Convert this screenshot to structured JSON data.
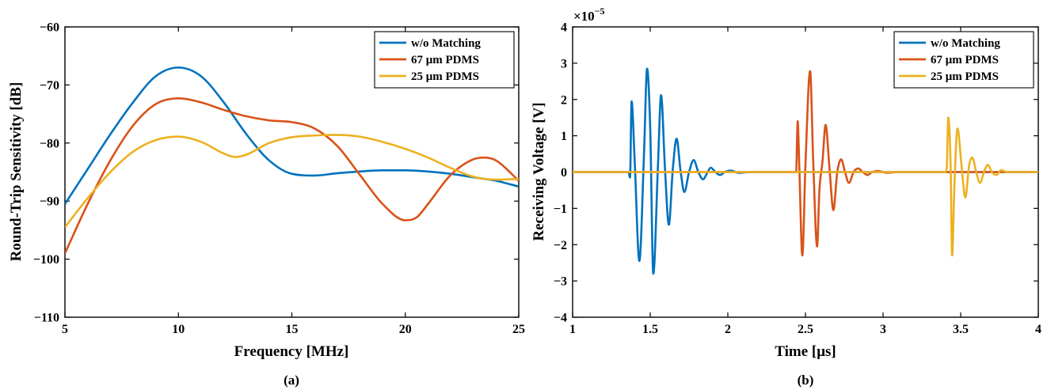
{
  "colors": {
    "w_o_matching": "#0072BD",
    "pdms_67": "#D95319",
    "pdms_25": "#EDB120"
  },
  "captions": [
    "(a)",
    "(b)"
  ],
  "chart_data": [
    {
      "type": "line",
      "panel": "(a)",
      "xlabel": "Frequency [MHz]",
      "ylabel": "Round-Trip Sensitivity [dB]",
      "xlim": [
        5,
        25
      ],
      "ylim": [
        -110,
        -60
      ],
      "xticks": [
        5,
        10,
        15,
        20,
        25
      ],
      "yticks": [
        -110,
        -100,
        -90,
        -80,
        -70,
        -60
      ],
      "grid": false,
      "legend_position": "top-right",
      "series": [
        {
          "name": "w/o Matching",
          "color": "#0072BD",
          "x": [
            5,
            6,
            7,
            8,
            9,
            10,
            11,
            12,
            13,
            14,
            15,
            16,
            17,
            18,
            19,
            20,
            21,
            22,
            23,
            24,
            25
          ],
          "y": [
            -90.5,
            -84.5,
            -78.5,
            -73,
            -68.5,
            -67,
            -68.5,
            -73,
            -78.5,
            -83,
            -85.3,
            -85.6,
            -85.2,
            -84.9,
            -84.7,
            -84.7,
            -84.9,
            -85.3,
            -85.9,
            -86.5,
            -87.5
          ]
        },
        {
          "name": "67 μm PDMS",
          "color": "#D95319",
          "x": [
            5,
            6,
            7,
            8,
            9,
            10,
            11,
            12,
            13,
            14,
            15,
            16,
            17,
            18,
            19,
            20,
            20.5,
            21,
            22,
            23,
            23.5,
            24,
            25
          ],
          "y": [
            -99,
            -90.5,
            -83,
            -77,
            -73.3,
            -72.3,
            -73,
            -74.3,
            -75.4,
            -76.1,
            -76.4,
            -77.5,
            -80.5,
            -85.5,
            -90.5,
            -93.3,
            -92.8,
            -90.5,
            -85.5,
            -82.8,
            -82.5,
            -83,
            -86.5
          ]
        },
        {
          "name": "25 μm PDMS",
          "color": "#EDB120",
          "x": [
            5,
            6,
            7,
            8,
            9,
            10,
            11,
            12,
            12.5,
            13,
            14,
            15,
            16,
            17,
            18,
            19,
            20,
            21,
            22,
            23,
            24,
            25
          ],
          "y": [
            -94.5,
            -89.5,
            -85,
            -81.5,
            -79.5,
            -78.9,
            -79.8,
            -81.8,
            -82.4,
            -82,
            -80,
            -79,
            -78.7,
            -78.6,
            -78.9,
            -79.8,
            -81,
            -82.5,
            -84.3,
            -85.8,
            -86.3,
            -86.2
          ]
        }
      ]
    },
    {
      "type": "line",
      "panel": "(b)",
      "xlabel": "Time [μs]",
      "ylabel": "Receiving Voltage [V]",
      "scale_label_base": "×10",
      "scale_label_exp": "−5",
      "xlim": [
        1,
        4
      ],
      "ylim": [
        -4,
        4
      ],
      "xticks": [
        1,
        1.5,
        2,
        2.5,
        3,
        3.5,
        4
      ],
      "yticks": [
        -4,
        -3,
        -2,
        -1,
        0,
        1,
        2,
        3,
        4
      ],
      "grid": false,
      "legend_position": "top-right",
      "series": [
        {
          "name": "w/o Matching",
          "color": "#0072BD",
          "x": [
            1,
            1.36,
            1.37,
            1.38,
            1.4,
            1.43,
            1.46,
            1.48,
            1.5,
            1.52,
            1.55,
            1.57,
            1.595,
            1.62,
            1.645,
            1.67,
            1.695,
            1.72,
            1.75,
            1.78,
            1.81,
            1.84,
            1.87,
            1.89,
            1.92,
            1.95,
            1.98,
            2.02,
            2.07,
            2.15,
            4
          ],
          "y": [
            0,
            0,
            -0.15,
            1.95,
            0.3,
            -2.45,
            0.5,
            2.85,
            1.2,
            -2.8,
            0.2,
            2.12,
            0.1,
            -1.45,
            0.05,
            0.92,
            0.05,
            -0.55,
            0,
            0.33,
            0,
            -0.2,
            0,
            0.12,
            0,
            -0.08,
            0,
            0.04,
            -0.02,
            0,
            0
          ]
        },
        {
          "name": "67 μm PDMS",
          "color": "#D95319",
          "x": [
            1,
            2.44,
            2.45,
            2.46,
            2.48,
            2.5,
            2.53,
            2.55,
            2.575,
            2.59,
            2.61,
            2.63,
            2.655,
            2.68,
            2.705,
            2.73,
            2.755,
            2.78,
            2.81,
            2.84,
            2.87,
            2.9,
            2.93,
            2.97,
            3.02,
            3.1,
            4
          ],
          "y": [
            0,
            0,
            1.4,
            0.2,
            -2.3,
            0.2,
            2.78,
            0.3,
            -2.05,
            -0.5,
            0.3,
            1.3,
            0.1,
            -1.05,
            0,
            0.35,
            0,
            -0.3,
            0,
            0.1,
            0,
            -0.08,
            0,
            0.03,
            -0.02,
            0,
            0
          ]
        },
        {
          "name": "25 μm PDMS",
          "color": "#EDB120",
          "x": [
            1,
            3.4,
            3.41,
            3.42,
            3.435,
            3.445,
            3.46,
            3.48,
            3.505,
            3.53,
            3.555,
            3.575,
            3.6,
            3.625,
            3.65,
            3.675,
            3.7,
            3.73,
            3.76,
            3.8,
            3.86,
            4
          ],
          "y": [
            0,
            0,
            0.1,
            1.5,
            0.2,
            -2.3,
            -0.3,
            1.2,
            0.2,
            -0.7,
            0.2,
            0.4,
            0,
            -0.3,
            0,
            0.2,
            0,
            -0.08,
            0.05,
            0,
            0,
            0
          ]
        }
      ]
    }
  ]
}
